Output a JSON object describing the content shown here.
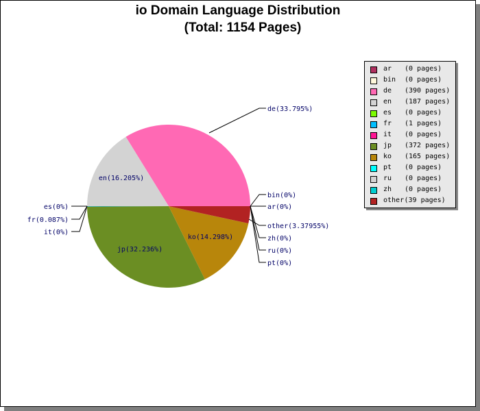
{
  "chart_data": {
    "type": "pie",
    "title": "io Domain Language Distribution",
    "subtitle": "(Total: 1154 Pages)",
    "slices": [
      {
        "name": "ar",
        "pages": 0,
        "pct_label": "ar(0%)",
        "legend_pages": "(0 pages)",
        "color": "#b03060"
      },
      {
        "name": "bin",
        "pages": 0,
        "pct_label": "bin(0%)",
        "legend_pages": "(0 pages)",
        "color": "#fff8dc"
      },
      {
        "name": "de",
        "pages": 390,
        "pct_label": "de(33.795%)",
        "legend_pages": "(390 pages)",
        "color": "#ff69b4"
      },
      {
        "name": "en",
        "pages": 187,
        "pct_label": "en(16.205%)",
        "legend_pages": "(187 pages)",
        "color": "#d3d3d3"
      },
      {
        "name": "es",
        "pages": 0,
        "pct_label": "es(0%)",
        "legend_pages": "(0 pages)",
        "color": "#7cfc00"
      },
      {
        "name": "fr",
        "pages": 1,
        "pct_label": "fr(0.087%)",
        "legend_pages": "(1 pages)",
        "color": "#00bfff"
      },
      {
        "name": "it",
        "pages": 0,
        "pct_label": "it(0%)",
        "legend_pages": "(0 pages)",
        "color": "#ff1493"
      },
      {
        "name": "jp",
        "pages": 372,
        "pct_label": "jp(32.236%)",
        "legend_pages": "(372 pages)",
        "color": "#6b8e23"
      },
      {
        "name": "ko",
        "pages": 165,
        "pct_label": "ko(14.298%)",
        "legend_pages": "(165 pages)",
        "color": "#b8860b"
      },
      {
        "name": "pt",
        "pages": 0,
        "pct_label": "pt(0%)",
        "legend_pages": "(0 pages)",
        "color": "#00ffff"
      },
      {
        "name": "ru",
        "pages": 0,
        "pct_label": "ru(0%)",
        "legend_pages": "(0 pages)",
        "color": "#d3d3d3"
      },
      {
        "name": "zh",
        "pages": 0,
        "pct_label": "zh(0%)",
        "legend_pages": "(0 pages)",
        "color": "#00ced1"
      },
      {
        "name": "other",
        "pages": 39,
        "pct_label": "other(3.37955%)",
        "legend_pages": "(39 pages)",
        "color": "#b22222"
      }
    ]
  }
}
